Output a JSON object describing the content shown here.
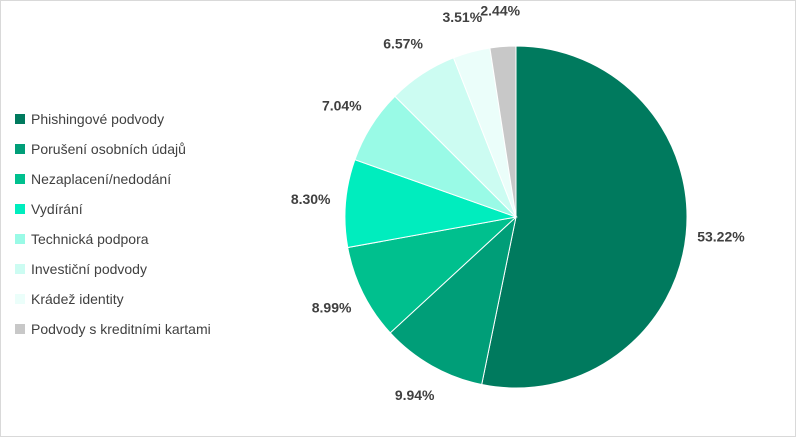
{
  "chart_data": {
    "type": "pie",
    "title": "",
    "legend_position": "left",
    "start_angle_deg": 0,
    "direction": "clockwise",
    "slices": [
      {
        "label": "Phishingové podvody",
        "value": 53.22,
        "value_label": "53.22%",
        "color": "#007A5E"
      },
      {
        "label": "Porušení osobních údajů",
        "value": 9.94,
        "value_label": "9.94%",
        "color": "#009E78"
      },
      {
        "label": "Nezaplacení/nedodání",
        "value": 8.99,
        "value_label": "8.99%",
        "color": "#00C08E"
      },
      {
        "label": "Vydírání",
        "value": 8.3,
        "value_label": "8.30%",
        "color": "#00EDBE"
      },
      {
        "label": "Technická podpora",
        "value": 7.04,
        "value_label": "7.04%",
        "color": "#99FAE6"
      },
      {
        "label": "Investiční podvody",
        "value": 6.57,
        "value_label": "6.57%",
        "color": "#CCFCF2"
      },
      {
        "label": "Krádež identity",
        "value": 3.51,
        "value_label": "3.51%",
        "color": "#EBFEFA"
      },
      {
        "label": "Podvody s kreditními kartami",
        "value": 2.44,
        "value_label": "2.44%",
        "color": "#C8C8C8"
      }
    ]
  }
}
